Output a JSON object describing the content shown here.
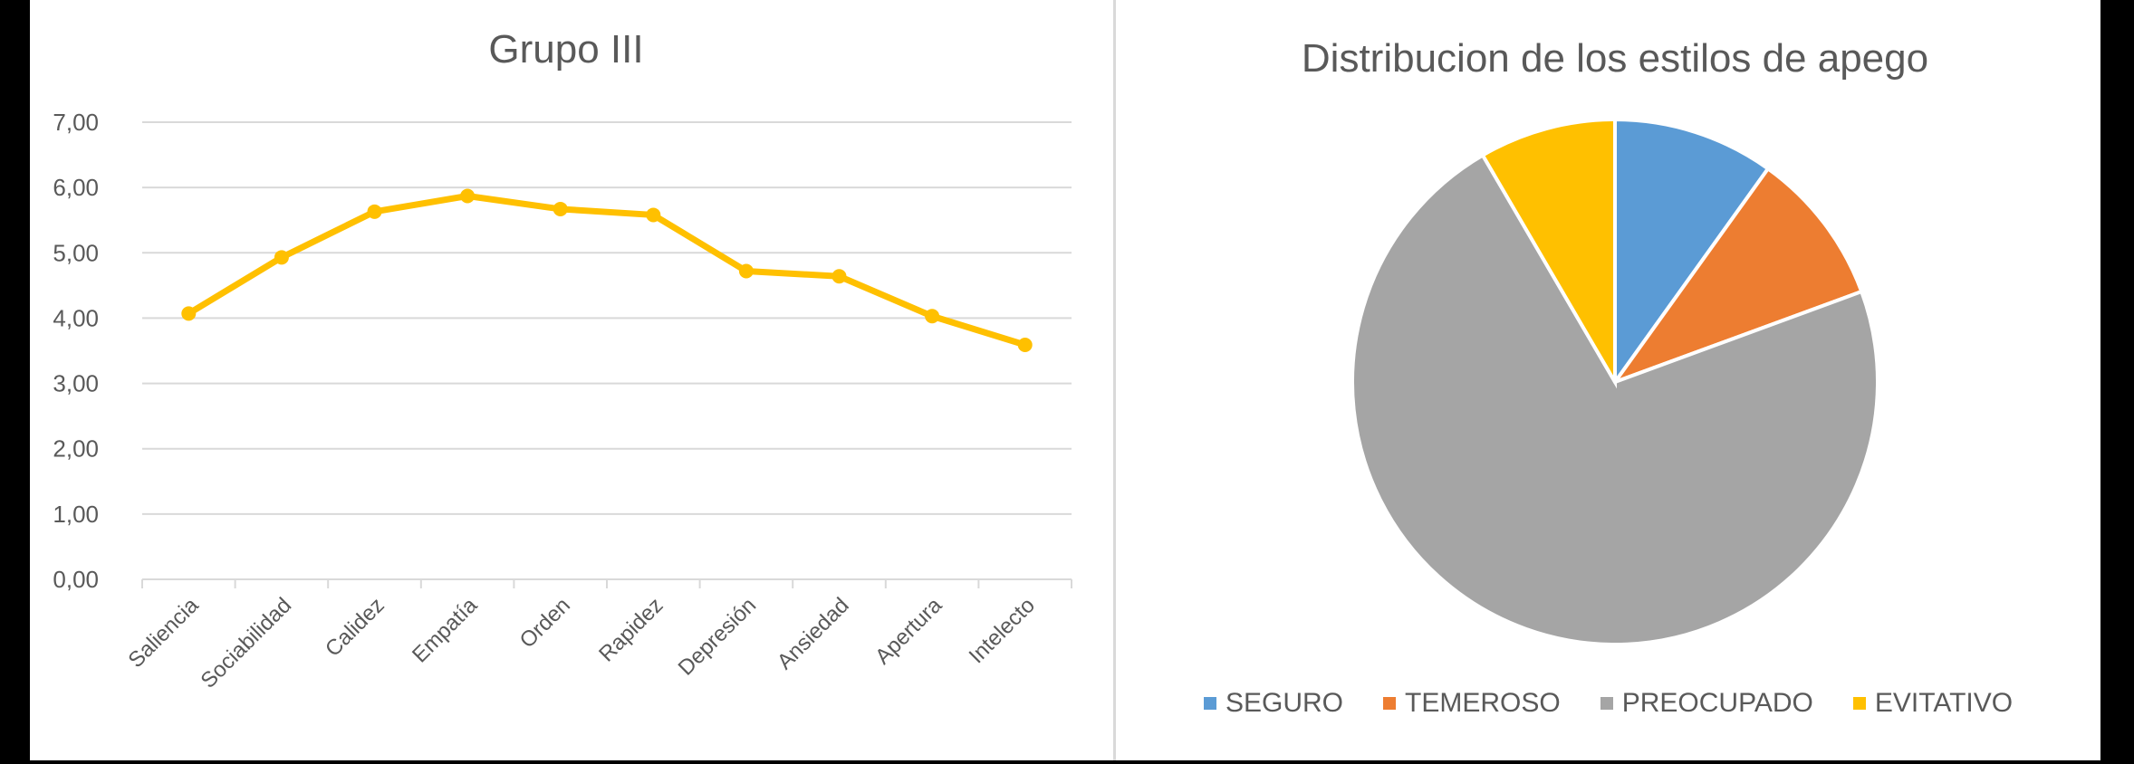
{
  "chart_data": [
    {
      "type": "line",
      "title": "Grupo III",
      "xlabel": "",
      "ylabel": "",
      "categories": [
        "Saliencia",
        "Sociabilidad",
        "Calidez",
        "Empatía",
        "Orden",
        "Rapidez",
        "Depresión",
        "Ansiedad",
        "Apertura",
        "Intelecto"
      ],
      "series": [
        {
          "name": "Grupo III",
          "color": "#FFC000",
          "values": [
            4.07,
            4.93,
            5.63,
            5.87,
            5.67,
            5.58,
            4.72,
            4.64,
            4.03,
            3.59
          ]
        }
      ],
      "ylim": [
        0,
        7
      ],
      "yticks": [
        "0,00",
        "1,00",
        "2,00",
        "3,00",
        "4,00",
        "5,00",
        "6,00",
        "7,00"
      ],
      "grid": true,
      "markers": true,
      "legend": "none"
    },
    {
      "type": "pie",
      "title": "Distribucion de los estilos de apego",
      "categories": [
        "SEGURO",
        "TEMEROSO",
        "PREOCUPADO",
        "EVITATIVO"
      ],
      "values": [
        9.9,
        9.5,
        72.2,
        8.4
      ],
      "unit": "percent (estimated from slice angles)",
      "colors": [
        "#5B9BD5",
        "#ED7D31",
        "#A5A5A5",
        "#FFC000"
      ],
      "start_angle_deg": 0,
      "direction": "clockwise",
      "legend_position": "bottom"
    }
  ],
  "line_chart": {
    "title": "Grupo III"
  },
  "pie_chart": {
    "title": "Distribucion de los estilos de apego",
    "legend": [
      {
        "label": "SEGURO",
        "color": "#5B9BD5"
      },
      {
        "label": "TEMEROSO",
        "color": "#ED7D31"
      },
      {
        "label": "PREOCUPADO",
        "color": "#A5A5A5"
      },
      {
        "label": "EVITATIVO",
        "color": "#FFC000"
      }
    ]
  }
}
